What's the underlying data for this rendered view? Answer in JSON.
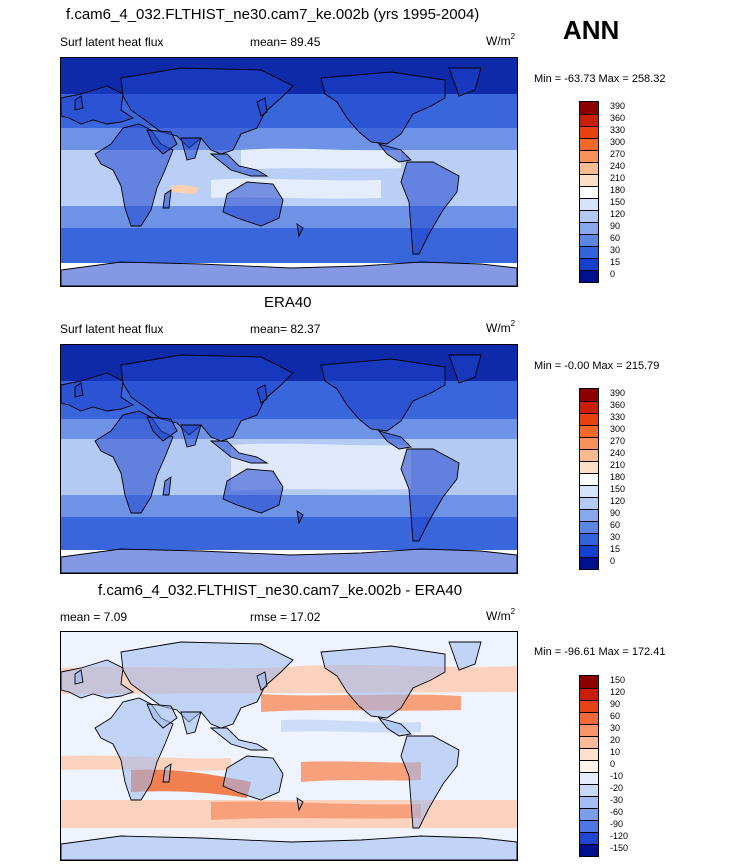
{
  "annual_label": "ANN",
  "panels": [
    {
      "id": "model",
      "title": "f.cam6_4_032.FLTHIST_ne30.cam7_ke.002b (yrs 1995-2004)",
      "left_label": "Surf latent heat flux",
      "mid_label": "mean=  89.45",
      "units": "W/m",
      "units_sup": "2",
      "minmax": "Min = -63.73 Max = 258.32",
      "colorbar": {
        "levels": [
          "390",
          "360",
          "330",
          "300",
          "270",
          "240",
          "210",
          "180",
          "150",
          "120",
          "90",
          "60",
          "30",
          "15",
          "0"
        ],
        "colors": [
          "#8b0000",
          "#c8200a",
          "#e8400e",
          "#f2692a",
          "#f7935a",
          "#fbba8f",
          "#fde0c7",
          "#ffffff",
          "#d5e4fa",
          "#b2c9f3",
          "#88a8ec",
          "#5d86e3",
          "#3563dc",
          "#1440cd",
          "#02108e"
        ]
      }
    },
    {
      "id": "obs",
      "title": "ERA40",
      "left_label": "Surf latent heat flux",
      "mid_label": "mean=  82.37",
      "units": "W/m",
      "units_sup": "2",
      "minmax": "Min =  -0.00 Max = 215.79",
      "colorbar": {
        "levels": [
          "390",
          "360",
          "330",
          "300",
          "270",
          "240",
          "210",
          "180",
          "150",
          "120",
          "90",
          "60",
          "30",
          "15",
          "0"
        ],
        "colors": [
          "#8b0000",
          "#c8200a",
          "#e8400e",
          "#f2692a",
          "#f7935a",
          "#fbba8f",
          "#fde0c7",
          "#ffffff",
          "#d5e4fa",
          "#b2c9f3",
          "#88a8ec",
          "#5d86e3",
          "#3563dc",
          "#1440cd",
          "#02108e"
        ]
      }
    },
    {
      "id": "diff",
      "title": "f.cam6_4_032.FLTHIST_ne30.cam7_ke.002b - ERA40",
      "left_label": "mean =   7.09",
      "mid_label": "rmse =  17.02",
      "units": "W/m",
      "units_sup": "2",
      "minmax": "Min = -96.61 Max = 172.41",
      "colorbar": {
        "levels": [
          "150",
          "120",
          "90",
          "60",
          "30",
          "20",
          "10",
          "0",
          "-10",
          "-20",
          "-30",
          "-60",
          "-90",
          "-120",
          "-150"
        ],
        "colors": [
          "#8b0000",
          "#c81f0d",
          "#e84217",
          "#f26a3b",
          "#f79469",
          "#fbbb9a",
          "#fde0cd",
          "#fff3ea",
          "#e6eefd",
          "#c9daf8",
          "#a4bdf2",
          "#7c9deb",
          "#4f77e0",
          "#2146cf",
          "#02108e"
        ]
      }
    }
  ],
  "map_colors": {
    "model": {
      "ocean": "#3a66dc",
      "mid": "#6d92e6",
      "light": "#b9cff5",
      "pale": "#e4edfc",
      "warm": "#fbd0b0",
      "land": "#1f44cc",
      "dry": "#0f2aa8"
    },
    "obs": {
      "ocean": "#3a66dc",
      "mid": "#6d92e6",
      "light": "#b3caf3",
      "pale": "#dfe9fb",
      "warm": "#fde2cc",
      "land": "#1f44cc",
      "dry": "#0f2aa8"
    },
    "diff": {
      "ocean": "#fbd2bd",
      "mid": "#f7a17c",
      "light": "#cddcf9",
      "pale": "#eef3fd",
      "warm": "#f08050",
      "land": "#9db8f1",
      "dry": "#5d86e3"
    }
  }
}
